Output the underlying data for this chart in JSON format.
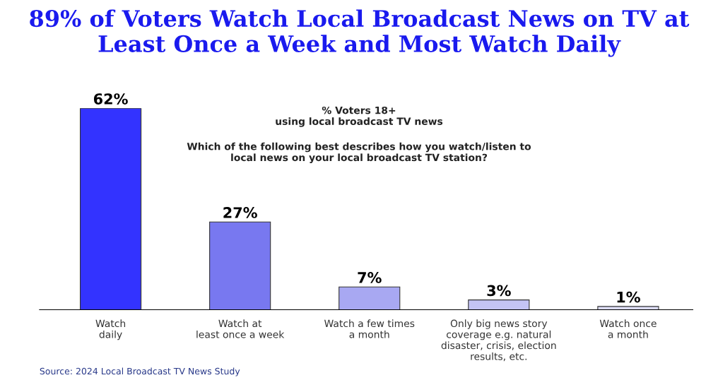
{
  "chart_data": {
    "type": "bar",
    "title": "89% of Voters Watch Local Broadcast News on TV at Least Once a Week and Most Watch Daily",
    "subtitle": "% Voters 18+\nusing local broadcast TV news",
    "categories": [
      "Watch\ndaily",
      "Watch at\nleast once a week",
      "Watch a few times\na month",
      "Only big news story\ncoverage e.g. natural\ndisaster, crisis, election\nresults, etc.",
      "Watch once\na month"
    ],
    "values": [
      62,
      27,
      7,
      3,
      1
    ],
    "colors": [
      "#3333ff",
      "#7878f0",
      "#a8a8f2",
      "#c4c4f4",
      "#dcdcf6"
    ],
    "data_labels": true,
    "value_labels": [
      "62%",
      "27%",
      "7%",
      "3%",
      "1%"
    ],
    "annotations": [
      "Which of the following best describes how you watch/listen to\nlocal news on your local broadcast TV station?",
      "Source: 2024 Local Broadcast TV News Study"
    ],
    "grid": false,
    "legend": false
  }
}
